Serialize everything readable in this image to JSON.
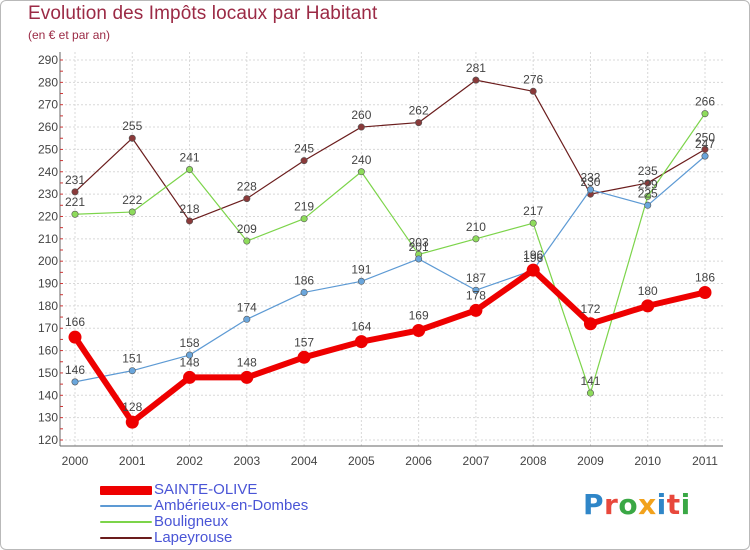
{
  "title": "Evolution des Impôts locaux par Habitant",
  "subtitle": "(en € et par an)",
  "brand": {
    "text": "Proxiti",
    "colors": [
      "#2f86c8",
      "#e8483c",
      "#3aa845",
      "#f2a21c",
      "#2f86c8",
      "#e8483c",
      "#3aa845"
    ]
  },
  "chart_data": {
    "type": "line",
    "x": [
      "2000",
      "2001",
      "2002",
      "2003",
      "2004",
      "2005",
      "2006",
      "2007",
      "2008",
      "2009",
      "2010",
      "2011"
    ],
    "ylim": [
      120,
      290
    ],
    "yticks": [
      120,
      130,
      140,
      150,
      160,
      170,
      180,
      190,
      200,
      210,
      220,
      230,
      240,
      250,
      260,
      270,
      280,
      290
    ],
    "grid": true,
    "legend_position": "bottom-left",
    "series": [
      {
        "name": "Lapeyrouse",
        "color": "#6b1d1d",
        "width": "thin",
        "values": [
          231,
          255,
          218,
          228,
          245,
          260,
          262,
          281,
          276,
          230,
          235,
          250
        ]
      },
      {
        "name": "Bouligneux",
        "color": "#7cd44a",
        "width": "thin",
        "values": [
          221,
          222,
          241,
          209,
          219,
          240,
          203,
          210,
          217,
          141,
          229,
          266
        ]
      },
      {
        "name": "Ambérieux-en-Dombes",
        "color": "#5d9ad4",
        "width": "thin",
        "values": [
          146,
          151,
          158,
          174,
          186,
          191,
          201,
          187,
          196,
          232,
          225,
          247
        ]
      },
      {
        "name": "SAINTE-OLIVE",
        "color": "#ee0000",
        "width": "thick",
        "values": [
          166,
          128,
          148,
          148,
          157,
          164,
          169,
          178,
          196,
          172,
          180,
          186
        ]
      }
    ],
    "legend_order": [
      "SAINTE-OLIVE",
      "Ambérieux-en-Dombes",
      "Bouligneux",
      "Lapeyrouse"
    ]
  }
}
